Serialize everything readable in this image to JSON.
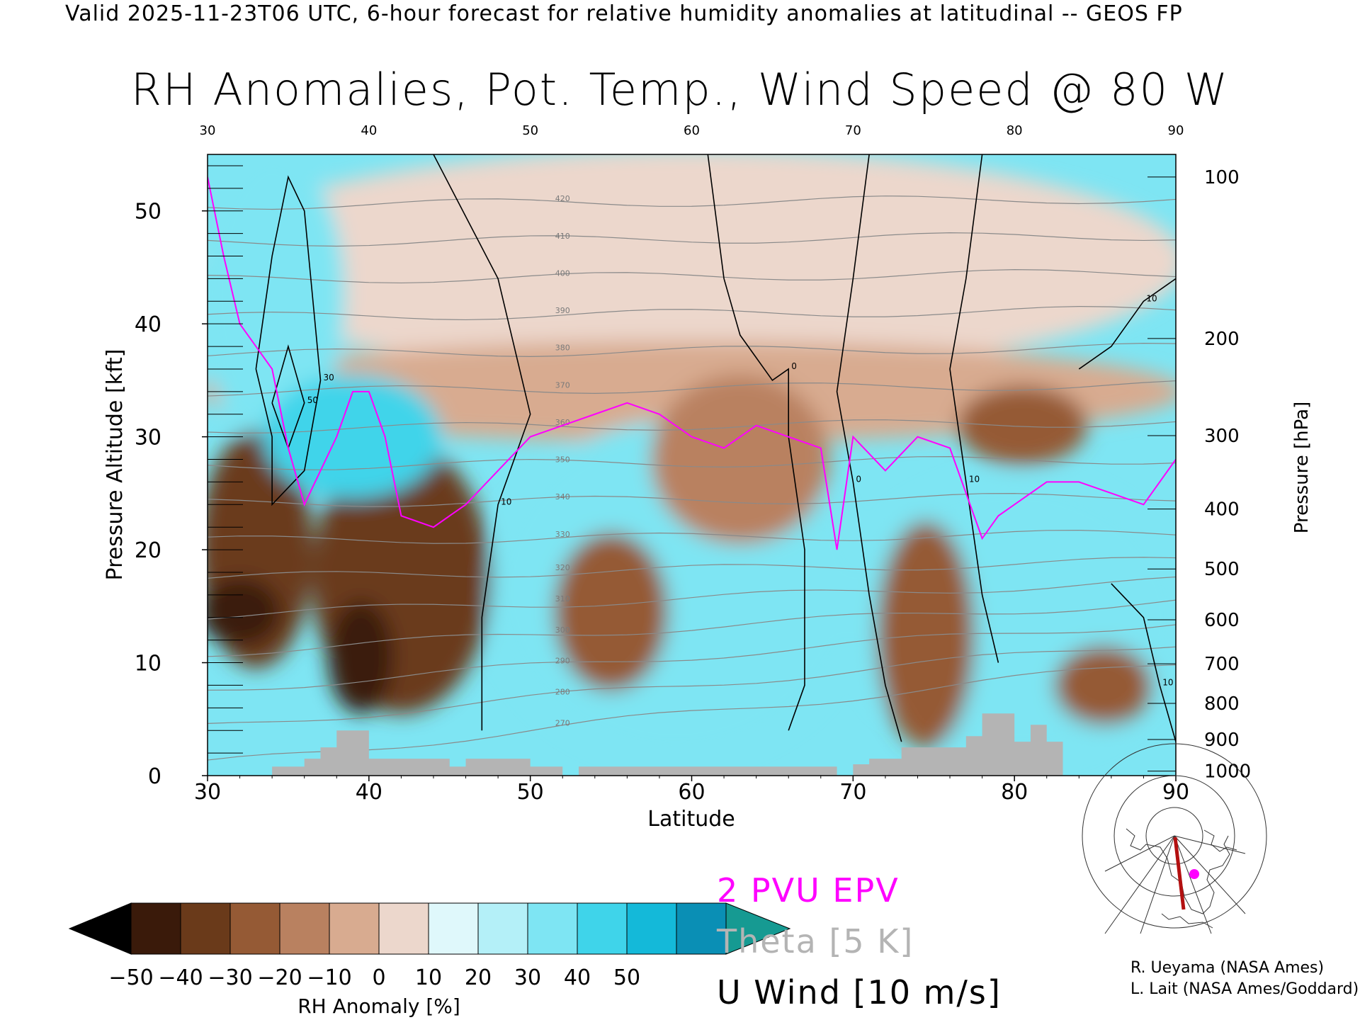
{
  "header": "Valid 2025-11-23T06 UTC, 6-hour forecast for relative humidity anomalies at latitudinal -- GEOS FP",
  "title": "RH Anomalies, Pot. Temp., Wind Speed @ 80 W",
  "credits": [
    "R. Ueyama (NASA Ames)",
    "L. Lait (NASA Ames/Goddard)"
  ],
  "legend": {
    "epv": "2 PVU EPV",
    "theta": "Theta [5 K]",
    "u_wind": "U Wind [10 m/s]"
  },
  "colorbar": {
    "label": "RH Anomaly [%]",
    "ticks": [
      "−50",
      "−40",
      "−30",
      "−20",
      "−10",
      "0",
      "10",
      "20",
      "30",
      "40",
      "50"
    ],
    "colors": [
      "#000000",
      "#3a1a0a",
      "#6a3a1a",
      "#955a35",
      "#b98160",
      "#d8ab90",
      "#ecd7cc",
      "#dff8fb",
      "#b4f0f8",
      "#7ee5f3",
      "#3fd4ea",
      "#14b9d9",
      "#0a8fb5",
      "#169a92"
    ]
  },
  "chart_data": {
    "type": "heatmap",
    "title": "RH Anomalies, Pot. Temp., Wind Speed @ 80 W",
    "xlabel": "Latitude",
    "ylabel": "Pressure Altitude [kft]",
    "y2label": "Pressure [hPa]",
    "xlim": [
      30,
      90
    ],
    "ylim": [
      0,
      55
    ],
    "x_ticks": [
      30,
      40,
      50,
      60,
      70,
      80,
      90
    ],
    "y_ticks": [
      0,
      10,
      20,
      30,
      40,
      50
    ],
    "pressure_ticks": [
      {
        "label": "100",
        "alt": 53.0
      },
      {
        "label": "200",
        "alt": 38.7
      },
      {
        "label": "300",
        "alt": 30.1
      },
      {
        "label": "400",
        "alt": 23.6
      },
      {
        "label": "500",
        "alt": 18.3
      },
      {
        "label": "600",
        "alt": 13.8
      },
      {
        "label": "700",
        "alt": 9.9
      },
      {
        "label": "800",
        "alt": 6.4
      },
      {
        "label": "900",
        "alt": 3.2
      },
      {
        "label": "1000",
        "alt": 0.4
      }
    ],
    "rh_anomaly_regions": [
      {
        "value": 0,
        "lat": [
          30,
          90
        ],
        "alt": [
          36,
          55
        ]
      },
      {
        "value": -10,
        "lat": [
          30,
          90
        ],
        "alt": [
          30,
          38
        ]
      },
      {
        "value": 30,
        "lat": [
          30,
          38
        ],
        "alt": [
          30,
          55
        ]
      },
      {
        "value": 30,
        "lat": [
          48,
          70
        ],
        "alt": [
          2,
          31
        ]
      },
      {
        "value": 30,
        "lat": [
          70,
          90
        ],
        "alt": [
          2,
          26
        ]
      },
      {
        "value": -40,
        "lat": [
          30,
          36
        ],
        "alt": [
          10,
          30
        ]
      },
      {
        "value": -50,
        "lat": [
          30,
          34
        ],
        "alt": [
          12,
          17
        ]
      },
      {
        "value": -40,
        "lat": [
          37,
          47
        ],
        "alt": [
          6,
          29
        ]
      },
      {
        "value": -50,
        "lat": [
          38,
          41
        ],
        "alt": [
          6,
          15
        ]
      },
      {
        "value": -30,
        "lat": [
          52,
          58
        ],
        "alt": [
          8,
          21
        ]
      },
      {
        "value": -30,
        "lat": [
          72,
          77
        ],
        "alt": [
          3,
          22
        ]
      },
      {
        "value": -30,
        "lat": [
          77,
          84
        ],
        "alt": [
          28,
          34
        ]
      },
      {
        "value": -30,
        "lat": [
          83,
          88
        ],
        "alt": [
          5,
          11
        ]
      },
      {
        "value": -20,
        "lat": [
          58,
          68
        ],
        "alt": [
          21,
          35
        ]
      },
      {
        "value": 40,
        "lat": [
          34,
          44
        ],
        "alt": [
          25,
          35
        ]
      }
    ],
    "epv_2pvu_line": [
      [
        30,
        53
      ],
      [
        31,
        46
      ],
      [
        32,
        40
      ],
      [
        33,
        38
      ],
      [
        34,
        36
      ],
      [
        35,
        29
      ],
      [
        36,
        24
      ],
      [
        37,
        27
      ],
      [
        38,
        30
      ],
      [
        39,
        34
      ],
      [
        40,
        34
      ],
      [
        41,
        30
      ],
      [
        42,
        23
      ],
      [
        44,
        22
      ],
      [
        46,
        24
      ],
      [
        48,
        27
      ],
      [
        50,
        30
      ],
      [
        52,
        31
      ],
      [
        54,
        32
      ],
      [
        56,
        33
      ],
      [
        58,
        32
      ],
      [
        60,
        30
      ],
      [
        62,
        29
      ],
      [
        64,
        31
      ],
      [
        66,
        30
      ],
      [
        68,
        29
      ],
      [
        69,
        20
      ],
      [
        70,
        30
      ],
      [
        72,
        27
      ],
      [
        74,
        30
      ],
      [
        76,
        29
      ],
      [
        78,
        21
      ],
      [
        79,
        23
      ],
      [
        80,
        24
      ],
      [
        82,
        26
      ],
      [
        84,
        26
      ],
      [
        86,
        25
      ],
      [
        88,
        24
      ],
      [
        90,
        28
      ]
    ],
    "theta_levels_K": [
      270,
      280,
      290,
      300,
      310,
      320,
      330,
      340,
      350,
      360,
      370,
      380,
      390,
      400,
      410,
      420
    ],
    "u_wind_contours_ms": [
      {
        "label": "10",
        "points": [
          [
            44,
            55
          ],
          [
            48,
            44
          ],
          [
            50,
            32
          ],
          [
            48,
            24
          ],
          [
            47,
            14
          ],
          [
            47,
            4
          ]
        ]
      },
      {
        "label": "30",
        "points": [
          [
            33,
            36
          ],
          [
            34,
            46
          ],
          [
            35,
            53
          ],
          [
            36,
            50
          ],
          [
            37,
            35
          ],
          [
            36,
            27
          ],
          [
            34,
            24
          ],
          [
            34,
            30
          ],
          [
            33,
            36
          ]
        ]
      },
      {
        "label": "50",
        "points": [
          [
            34,
            33
          ],
          [
            35,
            38
          ],
          [
            36,
            33
          ],
          [
            35,
            29
          ],
          [
            34,
            33
          ]
        ]
      },
      {
        "label": "0",
        "points": [
          [
            61,
            55
          ],
          [
            62,
            44
          ],
          [
            63,
            39
          ],
          [
            64,
            37
          ],
          [
            65,
            35
          ],
          [
            66,
            36
          ],
          [
            66,
            30
          ],
          [
            67,
            20
          ],
          [
            67,
            8
          ],
          [
            66,
            4
          ]
        ]
      },
      {
        "label": "0",
        "points": [
          [
            71,
            55
          ],
          [
            70,
            44
          ],
          [
            69,
            34
          ],
          [
            70,
            26
          ],
          [
            71,
            16
          ],
          [
            72,
            8
          ],
          [
            73,
            3
          ]
        ]
      },
      {
        "label": "10",
        "points": [
          [
            78,
            55
          ],
          [
            77,
            44
          ],
          [
            76,
            36
          ],
          [
            77,
            26
          ],
          [
            78,
            16
          ],
          [
            79,
            10
          ]
        ]
      },
      {
        "label": "10",
        "points": [
          [
            84,
            36
          ],
          [
            86,
            38
          ],
          [
            88,
            42
          ],
          [
            90,
            44
          ]
        ]
      },
      {
        "label": "10",
        "points": [
          [
            86,
            17
          ],
          [
            88,
            14
          ],
          [
            89,
            8
          ],
          [
            90,
            3
          ]
        ]
      }
    ],
    "topography_kft": [
      [
        30,
        0
      ],
      [
        34,
        0
      ],
      [
        34,
        0.8
      ],
      [
        36,
        0.8
      ],
      [
        36,
        1.5
      ],
      [
        37,
        1.5
      ],
      [
        37,
        2.5
      ],
      [
        38,
        2.5
      ],
      [
        38,
        4
      ],
      [
        40,
        4
      ],
      [
        40,
        1.5
      ],
      [
        45,
        1.5
      ],
      [
        45,
        0.8
      ],
      [
        46,
        0.8
      ],
      [
        46,
        1.5
      ],
      [
        50,
        1.5
      ],
      [
        50,
        0.8
      ],
      [
        52,
        0.8
      ],
      [
        52,
        0
      ],
      [
        53,
        0
      ],
      [
        53,
        0.8
      ],
      [
        69,
        0.8
      ],
      [
        69,
        0
      ],
      [
        70,
        0
      ],
      [
        70,
        1
      ],
      [
        71,
        1
      ],
      [
        71,
        1.5
      ],
      [
        73,
        1.5
      ],
      [
        73,
        2.5
      ],
      [
        77,
        2.5
      ],
      [
        77,
        3.5
      ],
      [
        78,
        3.5
      ],
      [
        78,
        5.5
      ],
      [
        80,
        5.5
      ],
      [
        80,
        3
      ],
      [
        81,
        3
      ],
      [
        81,
        4.5
      ],
      [
        82,
        4.5
      ],
      [
        82,
        3
      ],
      [
        83,
        3
      ],
      [
        83,
        0
      ],
      [
        90,
        0
      ]
    ]
  }
}
